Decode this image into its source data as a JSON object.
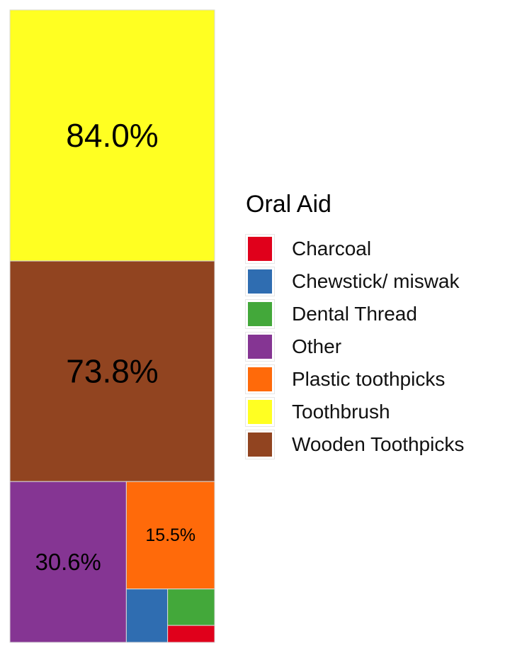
{
  "chart_data": {
    "type": "treemap",
    "title": "",
    "legend": {
      "title": "Oral Aid",
      "position": "right"
    },
    "colors": {
      "Charcoal": "#e0001b",
      "Chewstick/ miswak": "#2f6db1",
      "Dental Thread": "#43a83a",
      "Other": "#853593",
      "Plastic toothpicks": "#ff6a0a",
      "Toothbrush": "#ffff22",
      "Wooden Toothpicks": "#914420"
    },
    "legend_entries": [
      "Charcoal",
      "Chewstick/ miswak",
      "Dental Thread",
      "Other",
      "Plastic toothpicks",
      "Toothbrush",
      "Wooden Toothpicks"
    ],
    "data": [
      {
        "name": "Toothbrush",
        "label": "84.0%",
        "value": 84.0
      },
      {
        "name": "Wooden Toothpicks",
        "label": "73.8%",
        "value": 73.8
      },
      {
        "name": "Other",
        "label": "30.6%",
        "value": 30.6
      },
      {
        "name": "Plastic toothpicks",
        "label": "15.5%",
        "value": 15.5
      },
      {
        "name": "Chewstick/ miswak",
        "label": "",
        "value": 3.6
      },
      {
        "name": "Dental Thread",
        "label": "",
        "value": 2.8
      },
      {
        "name": "Charcoal",
        "label": "",
        "value": 1.3
      }
    ]
  }
}
